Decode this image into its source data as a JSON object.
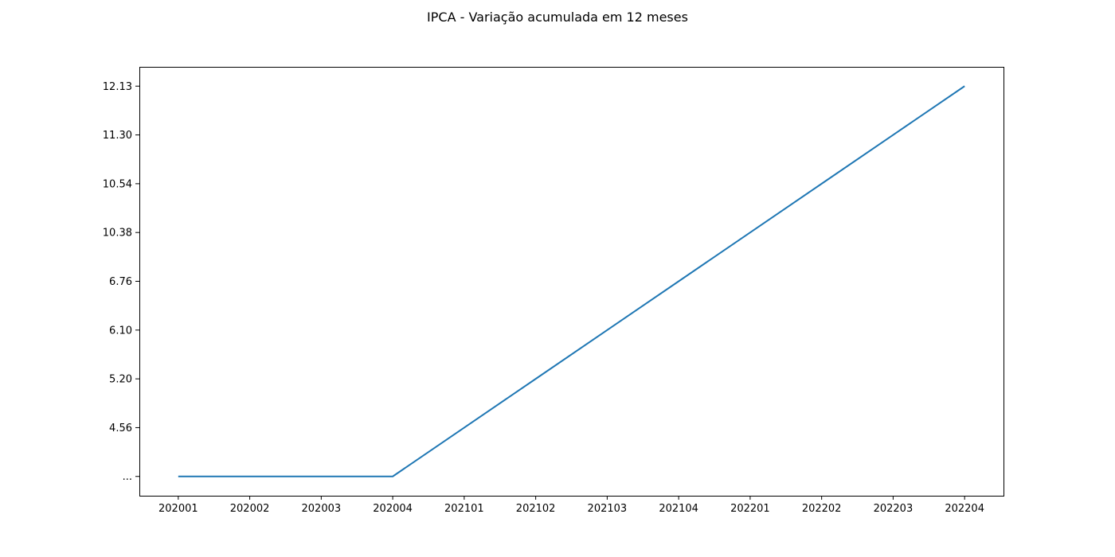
{
  "chart_data": {
    "type": "line",
    "title": "IPCA - Variação acumulada em 12 meses",
    "xlabel": "",
    "ylabel": "",
    "x": [
      "202001",
      "202002",
      "202003",
      "202004",
      "202101",
      "202102",
      "202103",
      "202104",
      "202201",
      "202202",
      "202203",
      "202204"
    ],
    "y_categories": [
      "...",
      "4.56",
      "5.20",
      "6.10",
      "6.76",
      "10.38",
      "10.54",
      "11.30",
      "12.13"
    ],
    "series": [
      {
        "color": "#1f77b4",
        "values": [
          "...",
          "...",
          "...",
          "...",
          "4.56",
          "5.20",
          "6.10",
          "6.76",
          "10.38",
          "10.54",
          "11.30",
          "12.13"
        ]
      }
    ],
    "grid": false,
    "legend": "none"
  }
}
